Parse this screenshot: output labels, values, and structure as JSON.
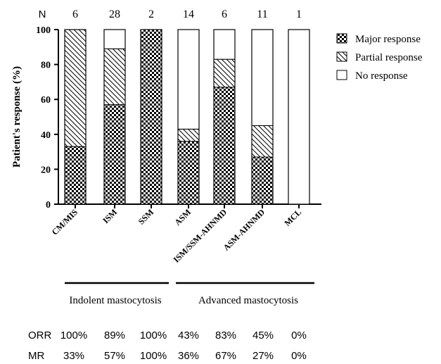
{
  "chart_data": {
    "type": "bar",
    "stacked": true,
    "categories": [
      "CM/MIS",
      "ISM",
      "SSM",
      "ASM",
      "ISM/SSM-AHNMD",
      "ASM-AHNMD",
      "MCL"
    ],
    "n_label": "N",
    "n_values": [
      "6",
      "28",
      "2",
      "14",
      "6",
      "11",
      "1"
    ],
    "series": [
      {
        "name": "Major response",
        "pattern": "checker",
        "values": [
          33,
          57,
          100,
          36,
          67,
          27,
          0
        ]
      },
      {
        "name": "Partial response",
        "pattern": "hatch",
        "values": [
          67,
          32,
          0,
          7,
          16,
          18,
          0
        ]
      },
      {
        "name": "No response",
        "pattern": "none",
        "values": [
          0,
          11,
          0,
          57,
          17,
          55,
          100
        ]
      }
    ],
    "ylabel": "Patient's response (%)",
    "ylim": [
      0,
      100
    ],
    "yticks": [
      "0",
      "20",
      "40",
      "60",
      "80",
      "100"
    ],
    "legend_position": "top-right",
    "groups": [
      {
        "label": "Indolent mastocytosis",
        "categories": [
          "CM/MIS",
          "ISM",
          "SSM"
        ]
      },
      {
        "label": "Advanced mastocytosis",
        "categories": [
          "ASM",
          "ISM/SSM-AHNMD",
          "ASM-AHNMD",
          "MCL"
        ]
      }
    ],
    "table": [
      {
        "label": "ORR",
        "values": [
          "100%",
          "89%",
          "100%",
          "43%",
          "83%",
          "45%",
          "0%"
        ]
      },
      {
        "label": "MR",
        "values": [
          "33%",
          "57%",
          "100%",
          "36%",
          "67%",
          "27%",
          "0%"
        ]
      }
    ]
  }
}
